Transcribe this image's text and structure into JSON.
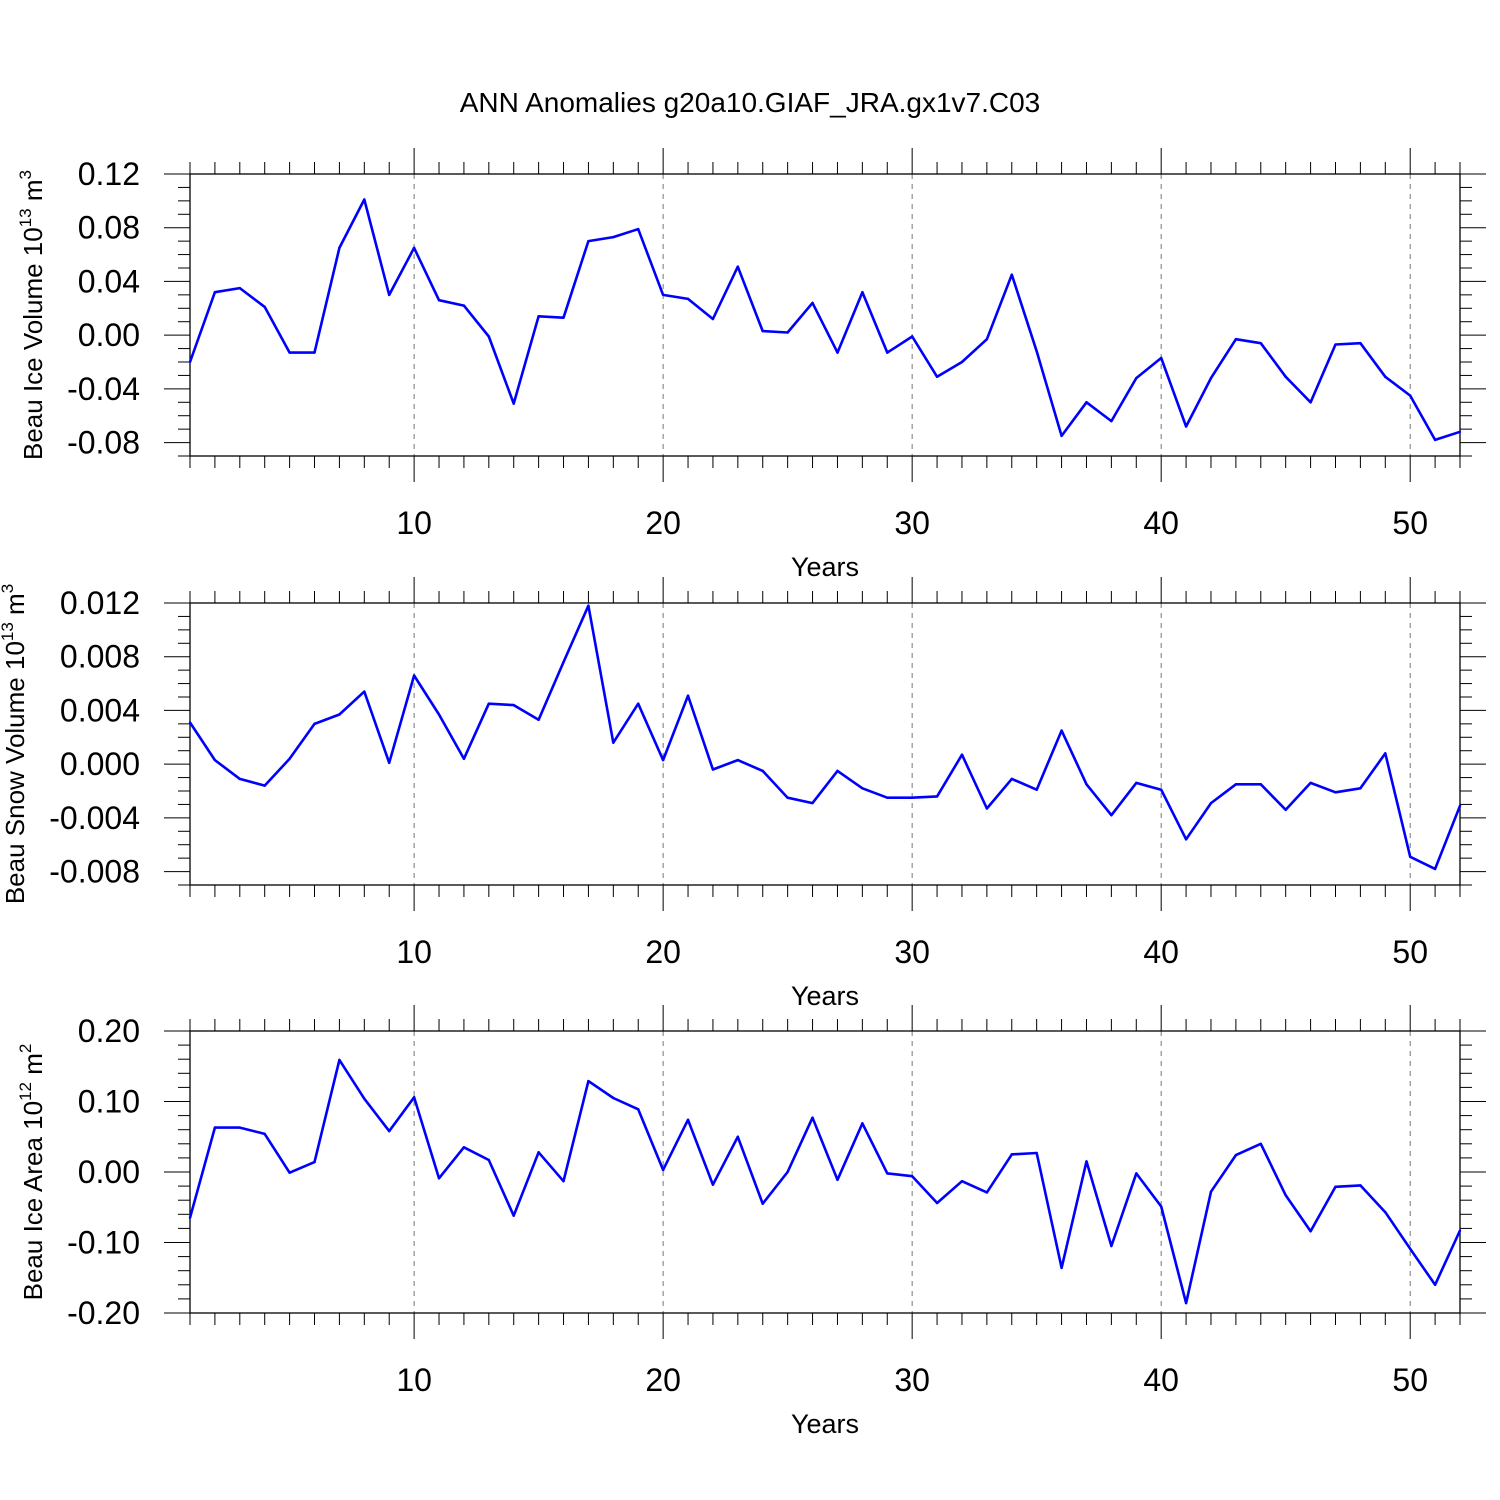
{
  "figure": {
    "title": "ANN Anomalies g20a10.GIAF_JRA.gx1v7.C03",
    "line_color": "#0000ff"
  },
  "chart_data": [
    {
      "type": "line",
      "xlabel": "Years",
      "ylabel": "Beau Ice Volume 10",
      "ylabel_sup": "13",
      "ylabel_unit": "m",
      "ylabel_unit_sup": "3",
      "xlim": [
        1,
        52
      ],
      "ylim": [
        -0.09,
        0.12
      ],
      "y_ticks": [
        0.12,
        0.08,
        0.04,
        0.0,
        -0.04,
        -0.08
      ],
      "y_tick_labels": [
        "0.12",
        "0.08",
        "0.04",
        "0.00",
        "-0.04",
        "-0.08"
      ],
      "y_minor_step": 0.01,
      "x_ticks": [
        10,
        20,
        30,
        40,
        50
      ],
      "x_tick_labels": [
        "10",
        "20",
        "30",
        "40",
        "50"
      ],
      "grid": "vertical dashed at major x ticks",
      "series": [
        {
          "x": [
            1,
            2,
            3,
            4,
            5,
            6,
            7,
            8,
            9,
            10,
            11,
            12,
            13,
            14,
            15,
            16,
            17,
            18,
            19,
            20,
            21,
            22,
            23,
            24,
            25,
            26,
            27,
            28,
            29,
            30,
            31,
            32,
            33,
            34,
            35,
            36,
            37,
            38,
            39,
            40,
            41,
            42,
            43,
            44,
            45,
            46,
            47,
            48,
            49,
            50,
            51,
            52
          ],
          "values": [
            -0.02,
            0.032,
            0.035,
            0.021,
            -0.013,
            -0.013,
            0.065,
            0.101,
            0.03,
            0.065,
            0.026,
            0.022,
            -0.001,
            -0.051,
            0.014,
            0.013,
            0.07,
            0.073,
            0.079,
            0.03,
            0.027,
            0.012,
            0.051,
            0.003,
            0.002,
            0.024,
            -0.013,
            0.032,
            -0.013,
            -0.001,
            -0.031,
            -0.02,
            -0.003,
            0.045,
            -0.012,
            -0.075,
            -0.05,
            -0.064,
            -0.032,
            -0.017,
            -0.068,
            -0.032,
            -0.003,
            -0.006,
            -0.031,
            -0.05,
            -0.007,
            -0.006,
            -0.031,
            -0.045,
            -0.078,
            -0.072
          ]
        }
      ]
    },
    {
      "type": "line",
      "xlabel": "Years",
      "ylabel": "Beau Snow Volume 10",
      "ylabel_sup": "13",
      "ylabel_unit": "m",
      "ylabel_unit_sup": "3",
      "xlim": [
        1,
        52
      ],
      "ylim": [
        -0.009,
        0.012
      ],
      "y_ticks": [
        0.012,
        0.008,
        0.004,
        0.0,
        -0.004,
        -0.008
      ],
      "y_tick_labels": [
        "0.012",
        "0.008",
        "0.004",
        "0.000",
        "-0.004",
        "-0.008"
      ],
      "y_minor_step": 0.001,
      "x_ticks": [
        10,
        20,
        30,
        40,
        50
      ],
      "x_tick_labels": [
        "10",
        "20",
        "30",
        "40",
        "50"
      ],
      "grid": "vertical dashed at major x ticks",
      "series": [
        {
          "x": [
            1,
            2,
            3,
            4,
            5,
            6,
            7,
            8,
            9,
            10,
            11,
            12,
            13,
            14,
            15,
            16,
            17,
            18,
            19,
            20,
            21,
            22,
            23,
            24,
            25,
            26,
            27,
            28,
            29,
            30,
            31,
            32,
            33,
            34,
            35,
            36,
            37,
            38,
            39,
            40,
            41,
            42,
            43,
            44,
            45,
            46,
            47,
            48,
            49,
            50,
            51,
            52
          ],
          "values": [
            0.0031,
            0.0003,
            -0.0011,
            -0.0016,
            0.0004,
            0.003,
            0.0037,
            0.0054,
            0.0001,
            0.0066,
            0.0037,
            0.0004,
            0.0045,
            0.0044,
            0.0033,
            0.0076,
            0.0118,
            0.0016,
            0.0045,
            0.0003,
            0.0051,
            -0.0004,
            0.0003,
            -0.0005,
            -0.0025,
            -0.0029,
            -0.0005,
            -0.0018,
            -0.0025,
            -0.0025,
            -0.0024,
            0.0007,
            -0.0033,
            -0.0011,
            -0.0019,
            0.0025,
            -0.0015,
            -0.0038,
            -0.0014,
            -0.0019,
            -0.0056,
            -0.0029,
            -0.0015,
            -0.0015,
            -0.0034,
            -0.0014,
            -0.0021,
            -0.0018,
            0.0008,
            -0.0069,
            -0.0078,
            -0.0031
          ]
        }
      ]
    },
    {
      "type": "line",
      "xlabel": "Years",
      "ylabel": "Beau Ice Area 10",
      "ylabel_sup": "12",
      "ylabel_unit": "m",
      "ylabel_unit_sup": "2",
      "xlim": [
        1,
        52
      ],
      "ylim": [
        -0.2,
        0.2
      ],
      "y_ticks": [
        0.2,
        0.1,
        0.0,
        -0.1,
        -0.2
      ],
      "y_tick_labels": [
        "0.20",
        "0.10",
        "0.00",
        "-0.10",
        "-0.20"
      ],
      "y_minor_step": 0.02,
      "x_ticks": [
        10,
        20,
        30,
        40,
        50
      ],
      "x_tick_labels": [
        "10",
        "20",
        "30",
        "40",
        "50"
      ],
      "grid": "vertical dashed at major x ticks",
      "series": [
        {
          "x": [
            1,
            2,
            3,
            4,
            5,
            6,
            7,
            8,
            9,
            10,
            11,
            12,
            13,
            14,
            15,
            16,
            17,
            18,
            19,
            20,
            21,
            22,
            23,
            24,
            25,
            26,
            27,
            28,
            29,
            30,
            31,
            32,
            33,
            34,
            35,
            36,
            37,
            38,
            39,
            40,
            41,
            42,
            43,
            44,
            45,
            46,
            47,
            48,
            49,
            50,
            51,
            52
          ],
          "values": [
            -0.065,
            0.063,
            0.063,
            0.054,
            -0.001,
            0.014,
            0.159,
            0.104,
            0.058,
            0.106,
            -0.009,
            0.035,
            0.017,
            -0.062,
            0.028,
            -0.013,
            0.129,
            0.105,
            0.089,
            0.003,
            0.074,
            -0.018,
            0.05,
            -0.045,
            0.0,
            0.077,
            -0.011,
            0.069,
            -0.002,
            -0.006,
            -0.044,
            -0.013,
            -0.029,
            0.025,
            0.027,
            -0.136,
            0.015,
            -0.105,
            -0.002,
            -0.049,
            -0.186,
            -0.028,
            0.024,
            0.04,
            -0.033,
            -0.084,
            -0.021,
            -0.019,
            -0.057,
            -0.109,
            -0.16,
            -0.083
          ]
        }
      ]
    }
  ]
}
